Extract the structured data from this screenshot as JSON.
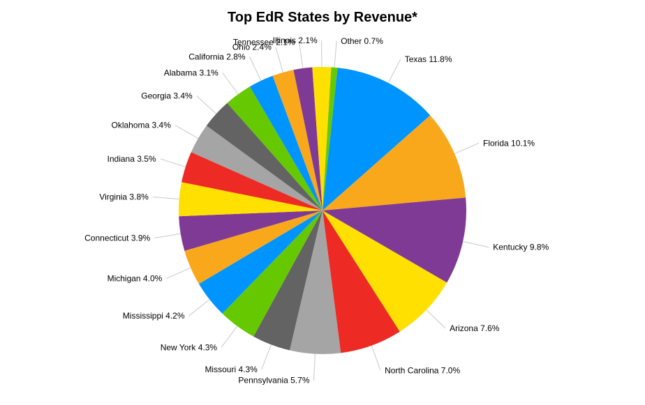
{
  "chart_data": {
    "type": "pie",
    "title": "Top EdR States by Revenue*",
    "slices": [
      {
        "label": "Texas",
        "value": 11.8,
        "display": "11.8%",
        "color": "#0094ff"
      },
      {
        "label": "Florida",
        "value": 10.1,
        "display": "10.1%",
        "color": "#f9a81c"
      },
      {
        "label": "Kentucky",
        "value": 9.8,
        "display": "9.8%",
        "color": "#7f3a96"
      },
      {
        "label": "Arizona",
        "value": 7.6,
        "display": "7.6%",
        "color": "#ffe000"
      },
      {
        "label": "North Carolina",
        "value": 7.0,
        "display": "7.0%",
        "color": "#ee2a24"
      },
      {
        "label": "Pennsylvania",
        "value": 5.7,
        "display": "5.7%",
        "color": "#a5a5a5"
      },
      {
        "label": "Missouri",
        "value": 4.3,
        "display": "4.3%",
        "color": "#636363"
      },
      {
        "label": "New York",
        "value": 4.3,
        "display": "4.3%",
        "color": "#66c900"
      },
      {
        "label": "Mississippi",
        "value": 4.2,
        "display": "4.2%",
        "color": "#0094ff"
      },
      {
        "label": "Michigan",
        "value": 4.0,
        "display": "4.0%",
        "color": "#f9a81c"
      },
      {
        "label": "Connecticut",
        "value": 3.9,
        "display": "3.9%",
        "color": "#7f3a96"
      },
      {
        "label": "Virginia",
        "value": 3.8,
        "display": "3.8%",
        "color": "#ffe000"
      },
      {
        "label": "Indiana",
        "value": 3.5,
        "display": "3.5%",
        "color": "#ee2a24"
      },
      {
        "label": "Oklahoma",
        "value": 3.4,
        "display": "3.4%",
        "color": "#a5a5a5"
      },
      {
        "label": "Georgia",
        "value": 3.4,
        "display": "3.4%",
        "color": "#636363"
      },
      {
        "label": "Alabama",
        "value": 3.1,
        "display": "3.1%",
        "color": "#66c900"
      },
      {
        "label": "California",
        "value": 2.8,
        "display": "2.8%",
        "color": "#0094ff"
      },
      {
        "label": "Ohio",
        "value": 2.4,
        "display": "2.4%",
        "color": "#f9a81c"
      },
      {
        "label": "Tennessee",
        "value": 2.1,
        "display": "2.1%",
        "color": "#7f3a96"
      },
      {
        "label": "Illinois",
        "value": 2.1,
        "display": "2.1%",
        "color": "#ffe000"
      },
      {
        "label": "Other",
        "value": 0.7,
        "display": "0.7%",
        "color": "#66c900"
      }
    ],
    "start_angle_deg": 6,
    "direction": "clockwise",
    "label_placement": "outside with leader lines"
  }
}
